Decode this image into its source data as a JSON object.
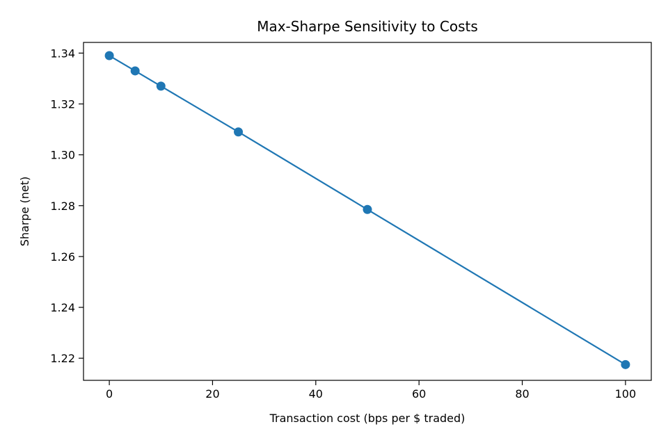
{
  "chart_data": {
    "type": "line",
    "title": "Max-Sharpe Sensitivity to Costs",
    "xlabel": "Transaction cost (bps per $ traded)",
    "ylabel": "Sharpe (net)",
    "xlim": [
      -5,
      105
    ],
    "ylim": [
      1.2113,
      1.3442
    ],
    "xticks": [
      0,
      20,
      40,
      60,
      80,
      100
    ],
    "yticks": [
      1.22,
      1.24,
      1.26,
      1.28,
      1.3,
      1.32,
      1.34
    ],
    "xtick_labels": [
      "0",
      "20",
      "40",
      "60",
      "80",
      "100"
    ],
    "ytick_labels": [
      "1.22",
      "1.24",
      "1.26",
      "1.28",
      "1.30",
      "1.32",
      "1.34"
    ],
    "grid": false,
    "series": [
      {
        "x": [
          0,
          5,
          10,
          25,
          50,
          100
        ],
        "y": [
          1.339,
          1.333,
          1.327,
          1.309,
          1.2785,
          1.2175
        ],
        "color": "#1f77b4",
        "marker": "circle"
      }
    ]
  }
}
